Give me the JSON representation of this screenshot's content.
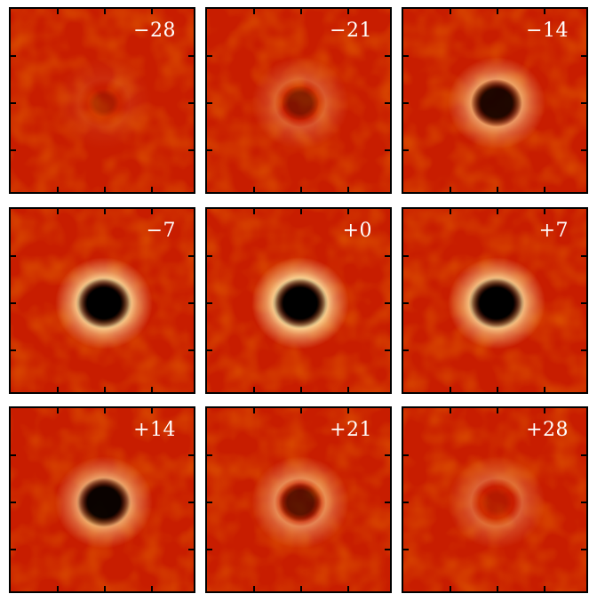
{
  "panels": [
    {
      "label": "−28",
      "core": 0.1,
      "ring": 0.08,
      "dark": 0.15
    },
    {
      "label": "−21",
      "core": 0.35,
      "ring": 0.3,
      "dark": 0.35
    },
    {
      "label": "−14",
      "core": 0.85,
      "ring": 0.65,
      "dark": 0.85
    },
    {
      "label": "−7",
      "core": 1.0,
      "ring": 0.95,
      "dark": 1.0
    },
    {
      "label": "+0",
      "core": 1.0,
      "ring": 1.0,
      "dark": 1.0
    },
    {
      "label": "+7",
      "core": 1.0,
      "ring": 0.9,
      "dark": 1.0
    },
    {
      "label": "+14",
      "core": 0.95,
      "ring": 0.7,
      "dark": 0.95
    },
    {
      "label": "+21",
      "core": 0.55,
      "ring": 0.55,
      "dark": 0.55
    },
    {
      "label": "+28",
      "core": 0.1,
      "ring": 0.35,
      "dark": 0.1
    }
  ],
  "colors": {
    "background": "#c81d00",
    "ring": "#ffe2a0",
    "core": "#000000",
    "label": "#ffffff"
  }
}
